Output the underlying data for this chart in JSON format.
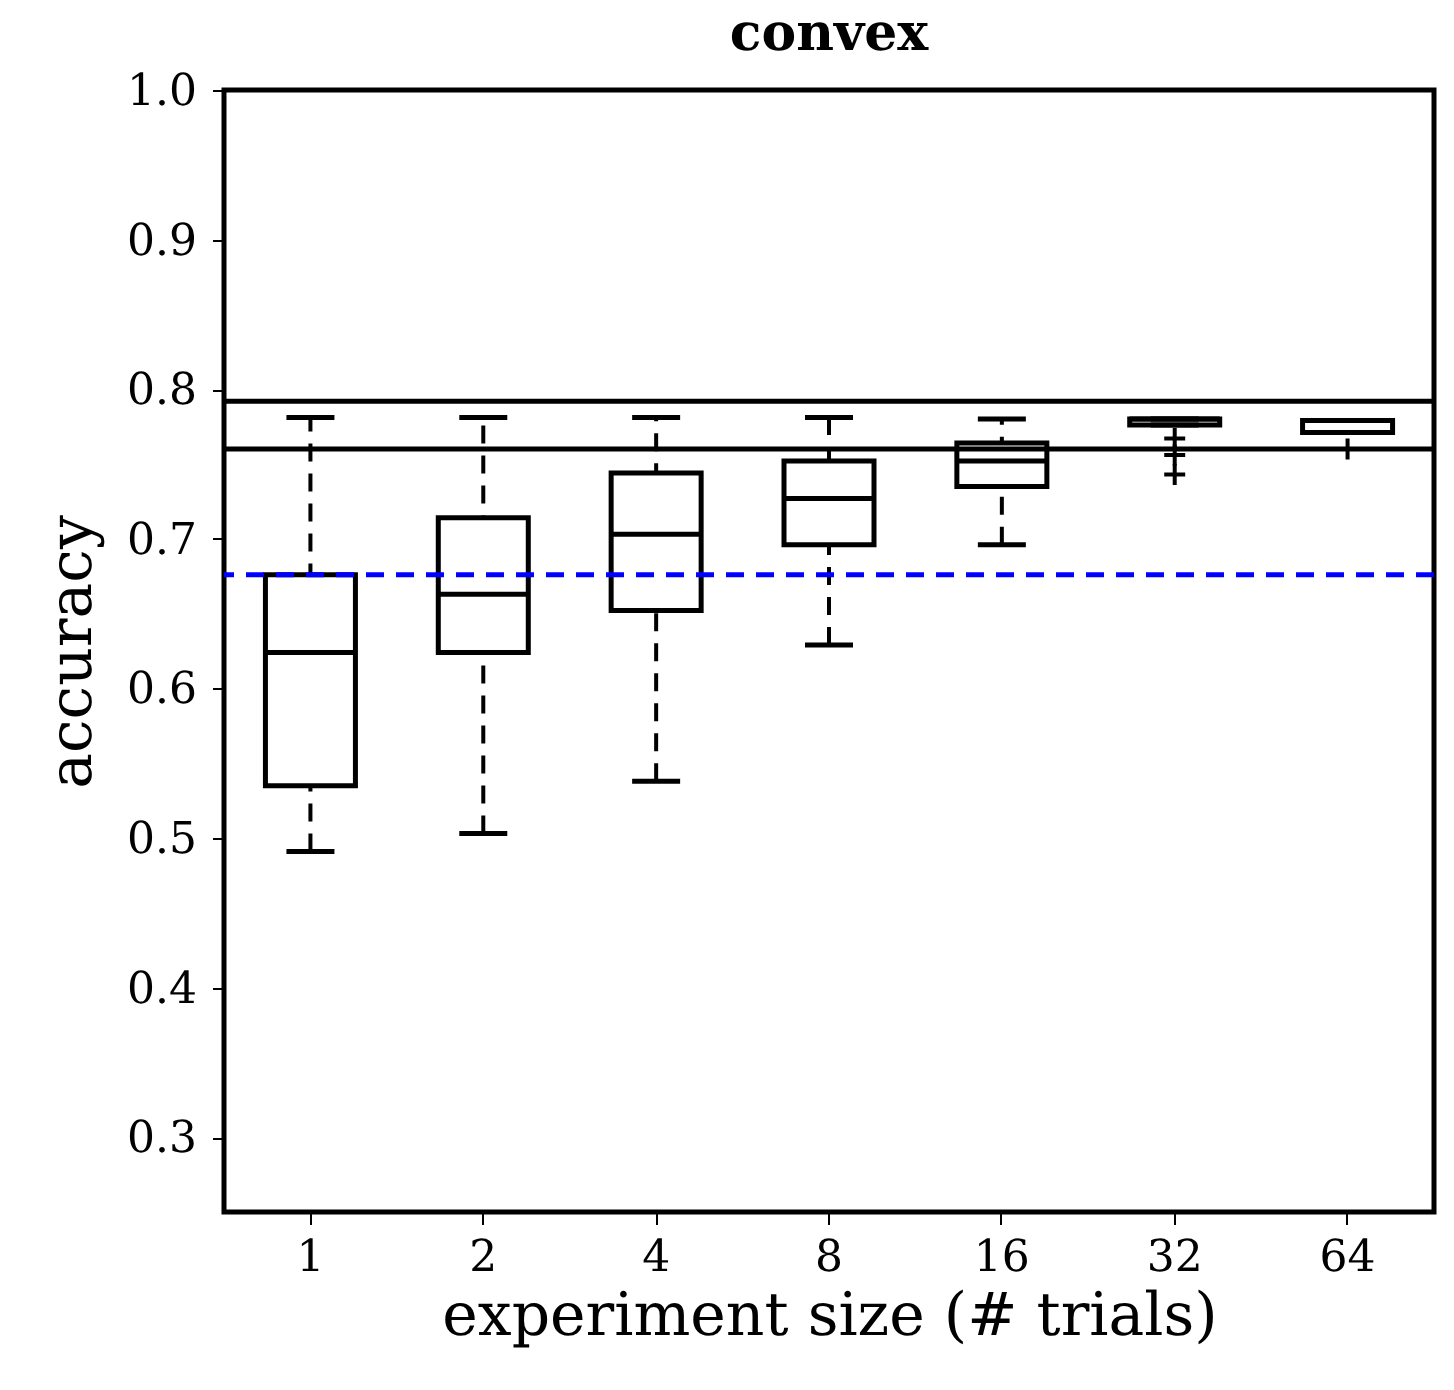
{
  "chart_data": {
    "type": "box",
    "title": "convex",
    "xlabel": "experiment size (# trials)",
    "ylabel": "accuracy",
    "categories": [
      "1",
      "2",
      "4",
      "8",
      "16",
      "32",
      "64"
    ],
    "series": [
      {
        "color": "#000000",
        "line_style": "dashed",
        "marker": "cross",
        "boxes": [
          {
            "low": 0.491,
            "q1": 0.535,
            "median": 0.624,
            "q3": 0.676,
            "high": 0.781
          },
          {
            "low": 0.503,
            "q1": 0.624,
            "median": 0.663,
            "q3": 0.714,
            "high": 0.781
          },
          {
            "low": 0.538,
            "q1": 0.652,
            "median": 0.703,
            "q3": 0.744,
            "high": 0.781
          },
          {
            "low": 0.629,
            "q1": 0.696,
            "median": 0.727,
            "q3": 0.752,
            "high": 0.781
          },
          {
            "low": 0.696,
            "q1": 0.735,
            "median": 0.752,
            "q3": 0.764,
            "high": 0.78
          },
          {
            "low": 0.776,
            "q1": 0.776,
            "median": 0.78,
            "q3": 0.78,
            "high": 0.78,
            "outliers": [
              0.767,
              0.756,
              0.743
            ]
          },
          {
            "low": 0.771,
            "q1": 0.771,
            "median": 0.779,
            "q3": 0.779,
            "high": 0.779,
            "outliers": [
              0.76
            ]
          }
        ]
      }
    ],
    "ylim": [
      0.25,
      1.0
    ],
    "yticks": [
      0.3,
      0.4,
      0.5,
      0.6,
      0.7,
      0.8,
      0.9,
      {
        "value": 1.0,
        "label": "1.0"
      }
    ],
    "ref_lines": [
      {
        "axis": "y",
        "value": 0.792,
        "color": "#000000",
        "line_style": "solid"
      },
      {
        "axis": "y",
        "value": 0.76,
        "color": "#000000",
        "line_style": "solid"
      },
      {
        "axis": "y",
        "value": 0.676,
        "color": "#0000ff",
        "line_style": "dashed"
      }
    ],
    "grid": false
  }
}
